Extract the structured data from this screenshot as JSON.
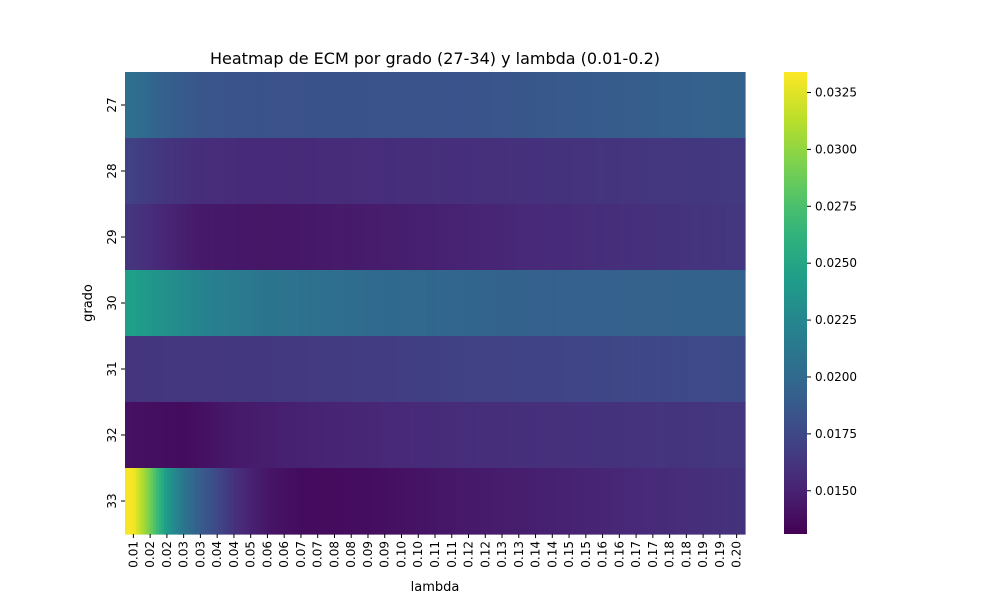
{
  "chart_data": {
    "type": "heatmap",
    "title": "Heatmap de ECM por grado (27-34) y lambda (0.01-0.2)",
    "xlabel": "lambda",
    "ylabel": "grado",
    "x_ticks": [
      "0.01",
      "0.02",
      "0.02",
      "0.03",
      "0.03",
      "0.04",
      "0.04",
      "0.05",
      "0.06",
      "0.06",
      "0.07",
      "0.07",
      "0.08",
      "0.08",
      "0.09",
      "0.09",
      "0.10",
      "0.10",
      "0.11",
      "0.11",
      "0.12",
      "0.12",
      "0.13",
      "0.13",
      "0.14",
      "0.14",
      "0.15",
      "0.15",
      "0.16",
      "0.16",
      "0.17",
      "0.17",
      "0.18",
      "0.18",
      "0.19",
      "0.19",
      "0.20"
    ],
    "rows": [
      "27",
      "28",
      "29",
      "30",
      "31",
      "32",
      "33"
    ],
    "profiles": [
      {
        "row": "27",
        "points": [
          [
            0,
            0.0205
          ],
          [
            1,
            0.0198
          ],
          [
            2,
            0.0192
          ],
          [
            4,
            0.0185
          ],
          [
            8,
            0.0182
          ],
          [
            20,
            0.0183
          ],
          [
            36,
            0.0195
          ]
        ]
      },
      {
        "row": "28",
        "points": [
          [
            0,
            0.017
          ],
          [
            2,
            0.0162
          ],
          [
            4,
            0.0157
          ],
          [
            8,
            0.0155
          ],
          [
            15,
            0.0157
          ],
          [
            25,
            0.016
          ],
          [
            36,
            0.0165
          ]
        ]
      },
      {
        "row": "29",
        "points": [
          [
            0,
            0.0162
          ],
          [
            2,
            0.0152
          ],
          [
            4,
            0.0145
          ],
          [
            8,
            0.0143
          ],
          [
            15,
            0.0147
          ],
          [
            25,
            0.0155
          ],
          [
            36,
            0.0163
          ]
        ]
      },
      {
        "row": "30",
        "points": [
          [
            0,
            0.0245
          ],
          [
            2,
            0.0232
          ],
          [
            5,
            0.0218
          ],
          [
            9,
            0.0208
          ],
          [
            15,
            0.02
          ],
          [
            25,
            0.0193
          ],
          [
            36,
            0.0195
          ]
        ]
      },
      {
        "row": "31",
        "points": [
          [
            0,
            0.0162
          ],
          [
            10,
            0.0165
          ],
          [
            20,
            0.017
          ],
          [
            36,
            0.0177
          ]
        ]
      },
      {
        "row": "32",
        "points": [
          [
            0,
            0.014
          ],
          [
            3,
            0.0137
          ],
          [
            6,
            0.0145
          ],
          [
            10,
            0.015
          ],
          [
            20,
            0.0157
          ],
          [
            36,
            0.0163
          ]
        ]
      },
      {
        "row": "33",
        "points": [
          [
            0,
            0.0332
          ],
          [
            1,
            0.029
          ],
          [
            2,
            0.024
          ],
          [
            3,
            0.021
          ],
          [
            4,
            0.019
          ],
          [
            5,
            0.0175
          ],
          [
            6,
            0.016
          ],
          [
            7,
            0.015
          ],
          [
            8,
            0.0143
          ],
          [
            10,
            0.0137
          ],
          [
            14,
            0.0138
          ],
          [
            20,
            0.0145
          ],
          [
            28,
            0.0152
          ],
          [
            36,
            0.016
          ]
        ]
      }
    ],
    "colorbar": {
      "colormap": "viridis",
      "min": 0.0131,
      "max": 0.0334,
      "ticks": [
        "0.0150",
        "0.0175",
        "0.0200",
        "0.0225",
        "0.0250",
        "0.0275",
        "0.0300",
        "0.0325"
      ]
    }
  }
}
